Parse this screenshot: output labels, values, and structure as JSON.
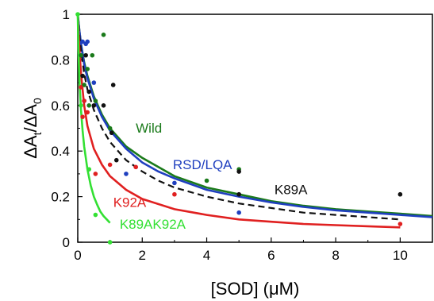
{
  "chart_data": {
    "type": "scatter",
    "title": "",
    "xlabel": "[SOD] (μM)",
    "ylabel_parts": {
      "main1": "ΔA",
      "sub1": "t",
      "slash": "/ΔA",
      "sub2": "0"
    },
    "xlim": [
      0,
      11
    ],
    "ylim": [
      0,
      1
    ],
    "xticks": [
      "0",
      "2",
      "4",
      "6",
      "8",
      "10"
    ],
    "xtick_values": [
      0,
      2,
      4,
      6,
      8,
      10
    ],
    "yticks": [
      "0",
      "0.2",
      "0.4",
      "0.6",
      "0.8",
      "1"
    ],
    "ytick_values": [
      0,
      0.2,
      0.4,
      0.6,
      0.8,
      1
    ],
    "grid": false,
    "legend": "inline-labels",
    "series": [
      {
        "name": "Wild",
        "color": "#1a7a1a",
        "line_style": "solid",
        "points": [
          [
            0.1,
            0.82
          ],
          [
            0.2,
            0.69
          ],
          [
            0.3,
            0.76
          ],
          [
            0.35,
            0.6
          ],
          [
            0.45,
            0.82
          ],
          [
            0.55,
            0.62
          ],
          [
            0.8,
            0.91
          ],
          [
            1.0,
            0.5
          ],
          [
            4.0,
            0.27
          ],
          [
            5.0,
            0.32
          ]
        ],
        "curve": [
          [
            0,
            1.0
          ],
          [
            0.05,
            0.93
          ],
          [
            0.1,
            0.87
          ],
          [
            0.2,
            0.79
          ],
          [
            0.3,
            0.73
          ],
          [
            0.5,
            0.64
          ],
          [
            0.75,
            0.56
          ],
          [
            1.0,
            0.5
          ],
          [
            1.5,
            0.42
          ],
          [
            2.0,
            0.37
          ],
          [
            2.5,
            0.33
          ],
          [
            3.0,
            0.29
          ],
          [
            4.0,
            0.24
          ],
          [
            5.0,
            0.21
          ],
          [
            6.0,
            0.18
          ],
          [
            7.0,
            0.16
          ],
          [
            8.0,
            0.145
          ],
          [
            9.0,
            0.135
          ],
          [
            10.0,
            0.125
          ],
          [
            11.0,
            0.115
          ]
        ]
      },
      {
        "name": "RSD/LQA",
        "color": "#1f3fbf",
        "line_style": "solid",
        "points": [
          [
            0.15,
            0.88
          ],
          [
            0.2,
            0.62
          ],
          [
            0.25,
            0.87
          ],
          [
            0.3,
            0.88
          ],
          [
            0.5,
            0.7
          ],
          [
            1.5,
            0.3
          ],
          [
            3.0,
            0.26
          ],
          [
            5.0,
            0.13
          ]
        ],
        "curve": [
          [
            0,
            1.0
          ],
          [
            0.05,
            0.93
          ],
          [
            0.1,
            0.87
          ],
          [
            0.2,
            0.78
          ],
          [
            0.3,
            0.72
          ],
          [
            0.5,
            0.63
          ],
          [
            0.75,
            0.55
          ],
          [
            1.0,
            0.49
          ],
          [
            1.5,
            0.41
          ],
          [
            2.0,
            0.35
          ],
          [
            2.5,
            0.31
          ],
          [
            3.0,
            0.28
          ],
          [
            4.0,
            0.23
          ],
          [
            5.0,
            0.2
          ],
          [
            6.0,
            0.175
          ],
          [
            7.0,
            0.155
          ],
          [
            8.0,
            0.14
          ],
          [
            9.0,
            0.13
          ],
          [
            10.0,
            0.12
          ],
          [
            11.0,
            0.11
          ]
        ]
      },
      {
        "name": "K89A",
        "color": "#111111",
        "line_style": "dashed",
        "points": [
          [
            0.15,
            0.73
          ],
          [
            0.25,
            0.82
          ],
          [
            0.35,
            0.66
          ],
          [
            0.5,
            0.6
          ],
          [
            0.8,
            0.6
          ],
          [
            1.1,
            0.69
          ],
          [
            1.05,
            0.48
          ],
          [
            1.2,
            0.36
          ],
          [
            5.0,
            0.21
          ],
          [
            5.0,
            0.31
          ],
          [
            10.0,
            0.21
          ]
        ],
        "curve": [
          [
            0,
            1.0
          ],
          [
            0.05,
            0.91
          ],
          [
            0.1,
            0.84
          ],
          [
            0.2,
            0.74
          ],
          [
            0.3,
            0.67
          ],
          [
            0.5,
            0.58
          ],
          [
            0.75,
            0.5
          ],
          [
            1.0,
            0.44
          ],
          [
            1.5,
            0.36
          ],
          [
            2.0,
            0.31
          ],
          [
            2.5,
            0.27
          ],
          [
            3.0,
            0.24
          ],
          [
            4.0,
            0.2
          ],
          [
            5.0,
            0.17
          ],
          [
            6.0,
            0.15
          ],
          [
            7.0,
            0.13
          ],
          [
            8.0,
            0.12
          ],
          [
            9.0,
            0.11
          ],
          [
            10.0,
            0.1
          ]
        ]
      },
      {
        "name": "K92A",
        "color": "#e02020",
        "line_style": "solid",
        "points": [
          [
            0.1,
            0.68
          ],
          [
            0.15,
            0.55
          ],
          [
            0.2,
            0.62
          ],
          [
            0.3,
            0.57
          ],
          [
            0.55,
            0.3
          ],
          [
            1.0,
            0.34
          ],
          [
            1.8,
            0.33
          ],
          [
            3.0,
            0.21
          ],
          [
            10.0,
            0.08
          ]
        ],
        "curve": [
          [
            0,
            1.0
          ],
          [
            0.05,
            0.85
          ],
          [
            0.1,
            0.74
          ],
          [
            0.2,
            0.6
          ],
          [
            0.3,
            0.51
          ],
          [
            0.5,
            0.41
          ],
          [
            0.75,
            0.34
          ],
          [
            1.0,
            0.29
          ],
          [
            1.5,
            0.23
          ],
          [
            2.0,
            0.19
          ],
          [
            3.0,
            0.145
          ],
          [
            4.0,
            0.12
          ],
          [
            5.0,
            0.1
          ],
          [
            6.0,
            0.09
          ],
          [
            7.0,
            0.08
          ],
          [
            8.0,
            0.075
          ],
          [
            9.0,
            0.07
          ],
          [
            10.0,
            0.065
          ]
        ]
      },
      {
        "name": "K89AK92A",
        "color": "#33e033",
        "line_style": "solid",
        "points": [
          [
            0.0,
            1.0
          ],
          [
            0.1,
            0.6
          ],
          [
            0.35,
            0.32
          ],
          [
            0.55,
            0.12
          ],
          [
            1.0,
            0.0
          ]
        ],
        "curve": [
          [
            0,
            1.0
          ],
          [
            0.02,
            0.85
          ],
          [
            0.05,
            0.72
          ],
          [
            0.1,
            0.58
          ],
          [
            0.15,
            0.49
          ],
          [
            0.2,
            0.42
          ],
          [
            0.3,
            0.32
          ],
          [
            0.4,
            0.25
          ],
          [
            0.5,
            0.2
          ],
          [
            0.6,
            0.165
          ],
          [
            0.7,
            0.135
          ],
          [
            0.8,
            0.115
          ],
          [
            0.9,
            0.1
          ],
          [
            1.0,
            0.085
          ]
        ]
      }
    ],
    "annotations": [
      {
        "text": "Wild",
        "series": 0,
        "x": 1.8,
        "y": 0.48
      },
      {
        "text": "RSD/LQA",
        "series": 1,
        "x": 2.95,
        "y": 0.32
      },
      {
        "text": "K89A",
        "series": 2,
        "x": 6.1,
        "y": 0.21
      },
      {
        "text": "K92A",
        "series": 3,
        "x": 1.1,
        "y": 0.155
      },
      {
        "text": "K89AK92A",
        "series": 4,
        "x": 1.3,
        "y": 0.06
      }
    ]
  }
}
